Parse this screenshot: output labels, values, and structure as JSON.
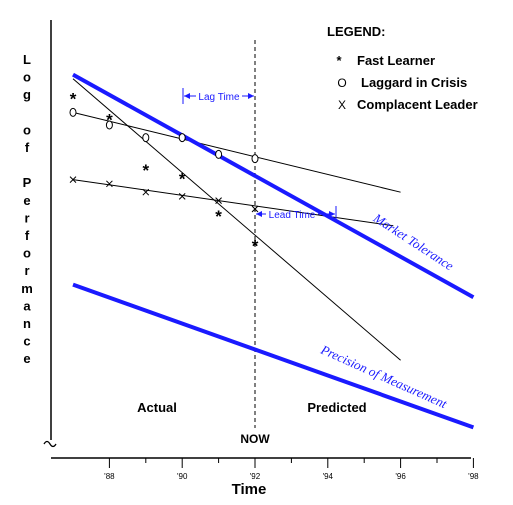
{
  "chart_data": {
    "type": "line",
    "xlabel": "Time",
    "ylabel": "Log of Performance",
    "x_ticks": [
      "'88",
      "'90",
      "'92",
      "'94",
      "'96",
      "'98"
    ],
    "xlim": [
      1986.8,
      1998
    ],
    "ylim": [
      0,
      100
    ],
    "y_scale": "log",
    "grid": false,
    "legend": {
      "title": "LEGEND:",
      "placement": "top-right",
      "entries": [
        {
          "marker": "*",
          "label": "Fast Learner"
        },
        {
          "marker": "O",
          "label": "Laggard in Crisis"
        },
        {
          "marker": "X",
          "label": "Complacent Leader"
        }
      ]
    },
    "lines": [
      {
        "name": "Market Tolerance",
        "color": "#1a1aff",
        "width": "thick",
        "x": [
          1987,
          1998
        ],
        "y": [
          87,
          34
        ]
      },
      {
        "name": "Precision of Measurement",
        "color": "#1a1aff",
        "width": "thick",
        "x": [
          1987,
          1998
        ],
        "y": [
          37,
          3
        ]
      }
    ],
    "series": [
      {
        "marker": "*",
        "x": [
          1987,
          1988,
          1989,
          1990,
          1991,
          1992
        ],
        "y": [
          82,
          77,
          65,
          63,
          54,
          47
        ]
      },
      {
        "marker": "O",
        "x": [
          1987,
          1988,
          1989,
          1990,
          1991,
          1992
        ],
        "y": [
          78,
          75,
          72,
          72,
          68,
          67
        ]
      },
      {
        "marker": "X",
        "x": [
          1987,
          1988,
          1989,
          1990,
          1991,
          1992
        ],
        "y": [
          62,
          61,
          59,
          58,
          57,
          55
        ]
      }
    ],
    "trend_lines": [
      {
        "x": [
          1987,
          1996
        ],
        "y": [
          86,
          19
        ]
      },
      {
        "x": [
          1987,
          1996
        ],
        "y": [
          78,
          59
        ]
      },
      {
        "x": [
          1987,
          1995.8
        ],
        "y": [
          62,
          51
        ]
      }
    ],
    "now_x": 1992,
    "annotations": {
      "now": "NOW",
      "actual": "Actual",
      "predicted": "Predicted",
      "lag_time": "Lag Time",
      "lead_time": "Lead Time"
    }
  }
}
